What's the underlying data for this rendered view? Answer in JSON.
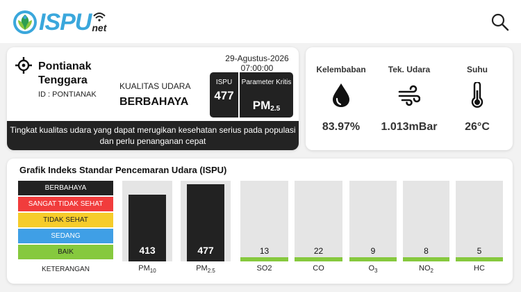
{
  "header": {
    "logo": {
      "main": "ISPU",
      "suffix": "net"
    },
    "icons": {
      "search": "search-icon"
    }
  },
  "location": {
    "name": "Pontianak Tenggara",
    "id_text": "ID : PONTIANAK",
    "date": "29-Agustus-2026",
    "time": "07:00:00",
    "kualitas_label": "KUALITAS UDARA",
    "kualitas_value": "BERBAHAYA",
    "ispu_label": "ISPU",
    "ispu_value": "477",
    "param_label": "Parameter Kritis",
    "param_value": "PM",
    "param_sub": "2.5",
    "description": "Tingkat kualitas udara yang dapat merugikan kesehatan serius pada populasi dan perlu penanganan cepat",
    "icon": "crosshair-location-icon"
  },
  "weather": {
    "humidity": {
      "label": "Kelembaban",
      "value": "83.97%",
      "icon": "water-drop-icon"
    },
    "pressure": {
      "label": "Tek. Udara",
      "value": "1.013mBar",
      "icon": "wind-icon"
    },
    "temperature": {
      "label": "Suhu",
      "value": "26°C",
      "icon": "thermometer-icon"
    }
  },
  "chart_data": {
    "type": "bar",
    "title": "Grafik Indeks Standar Pencemaran Udara (ISPU)",
    "legend_caption": "KETERANGAN",
    "legend": [
      {
        "label": "BERBAHAYA",
        "color": "#222222",
        "text_color": "#ffffff"
      },
      {
        "label": "SANGAT TIDAK SEHAT",
        "color": "#f13c3c",
        "text_color": "#ffffff"
      },
      {
        "label": "TIDAK SEHAT",
        "color": "#f6cc2b",
        "text_color": "#222222"
      },
      {
        "label": "SEDANG",
        "color": "#3f9fe6",
        "text_color": "#ffffff"
      },
      {
        "label": "BAIK",
        "color": "#86c93e",
        "text_color": "#222222"
      }
    ],
    "categories": [
      {
        "base": "PM",
        "sub": "10"
      },
      {
        "base": "PM",
        "sub": "2.5"
      },
      {
        "base": "SO2",
        "sub": ""
      },
      {
        "base": "CO",
        "sub": ""
      },
      {
        "base": "O",
        "sub": "3"
      },
      {
        "base": "NO",
        "sub": "2"
      },
      {
        "base": "HC",
        "sub": ""
      }
    ],
    "values": [
      413,
      477,
      13,
      22,
      9,
      8,
      5
    ],
    "bar_colors": [
      "#222222",
      "#222222",
      "#86c93e",
      "#86c93e",
      "#86c93e",
      "#86c93e",
      "#86c93e"
    ],
    "ylim": [
      0,
      500
    ]
  }
}
